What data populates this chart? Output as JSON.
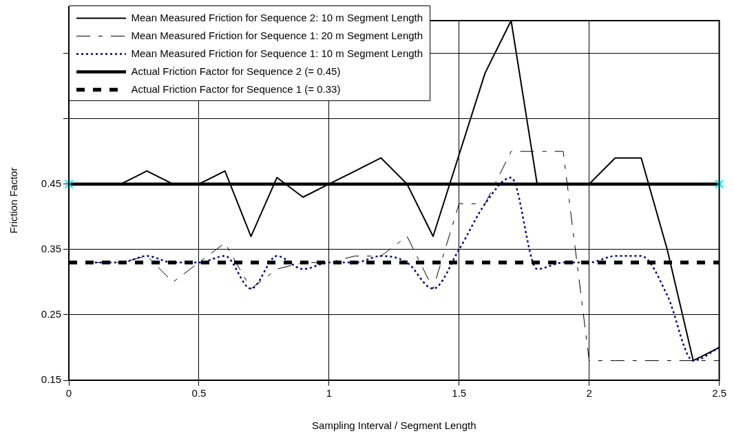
{
  "chart_data": {
    "type": "line",
    "xlabel": "Sampling Interval / Segment Length",
    "ylabel": "Friction Factor",
    "xlim": [
      0,
      2.5
    ],
    "xticks": [
      0,
      0.5,
      1,
      1.5,
      2,
      2.5
    ],
    "ylim": [
      0.15,
      0.7
    ],
    "yticks": [
      0.15,
      0.25,
      0.35,
      0.45,
      {
        "value": 0.55,
        "label": null
      },
      {
        "value": 0.65,
        "label": null
      }
    ],
    "grid": true,
    "legend": "top left",
    "series": [
      {
        "name": "Mean Measured Friction for Sequence 2: 10 m Segment Length",
        "color": "#000000",
        "line_style": "solid",
        "x": [
          0.2,
          0.3,
          0.4,
          0.5,
          0.6,
          0.7,
          0.8,
          0.9,
          1.0,
          1.2,
          1.3,
          1.4,
          1.6,
          1.7,
          1.8,
          1.9,
          2.0,
          2.1,
          2.2,
          2.3,
          2.4,
          2.5
        ],
        "values": [
          0.45,
          0.47,
          0.45,
          0.45,
          0.47,
          0.37,
          0.46,
          0.43,
          0.45,
          0.49,
          0.45,
          0.37,
          0.62,
          0.7,
          0.45,
          0.45,
          0.45,
          0.49,
          0.49,
          0.35,
          0.18,
          0.2
        ]
      },
      {
        "name": "Mean Measured Friction for Sequence 1: 20 m Segment Length",
        "color": "#000000",
        "line_style": "dashed",
        "x": [
          0.1,
          0.2,
          0.3,
          0.4,
          0.5,
          0.6,
          0.7,
          0.8,
          0.9,
          1.0,
          1.1,
          1.2,
          1.3,
          1.4,
          1.5,
          1.6,
          1.7,
          1.8,
          1.9,
          2.0,
          2.1,
          2.2,
          2.3,
          2.4,
          2.5
        ],
        "values": [
          0.33,
          0.33,
          0.34,
          0.3,
          0.33,
          0.36,
          0.29,
          0.32,
          0.33,
          0.33,
          0.34,
          0.34,
          0.37,
          0.29,
          0.42,
          0.42,
          0.5,
          0.5,
          0.5,
          0.18,
          0.18,
          0.18,
          0.18,
          0.18,
          0.18
        ]
      },
      {
        "name": "Mean Measured Friction for Sequence 1: 10 m Segment Length",
        "color": "#000080",
        "line_style": "dotted",
        "x": [
          0.1,
          0.2,
          0.3,
          0.4,
          0.5,
          0.6,
          0.7,
          0.8,
          0.9,
          1.0,
          1.1,
          1.2,
          1.3,
          1.4,
          1.5,
          1.6,
          1.7,
          1.8,
          1.9,
          2.0,
          2.1,
          2.2,
          2.3,
          2.4,
          2.5
        ],
        "values": [
          0.33,
          0.33,
          0.34,
          0.33,
          0.33,
          0.34,
          0.29,
          0.34,
          0.32,
          0.33,
          0.33,
          0.34,
          0.33,
          0.29,
          0.35,
          0.42,
          0.46,
          0.32,
          0.33,
          0.33,
          0.34,
          0.34,
          0.28,
          0.18,
          0.2
        ]
      },
      {
        "type": "scatter",
        "color": "#00ffff",
        "marker": "cross",
        "x": [
          0,
          2.5
        ],
        "values": [
          0.45,
          0.45
        ]
      }
    ],
    "ref_lines": [
      {
        "axis": "y",
        "value": 0.45,
        "label": "Actual Friction Factor for Sequence 2 (= 0.45)",
        "color": "#000000",
        "line_style": "solid"
      },
      {
        "axis": "y",
        "value": 0.33,
        "label": "Actual Friction Factor for Sequence 1 (= 0.33)",
        "color": "#000000",
        "line_style": "dashed"
      }
    ]
  }
}
